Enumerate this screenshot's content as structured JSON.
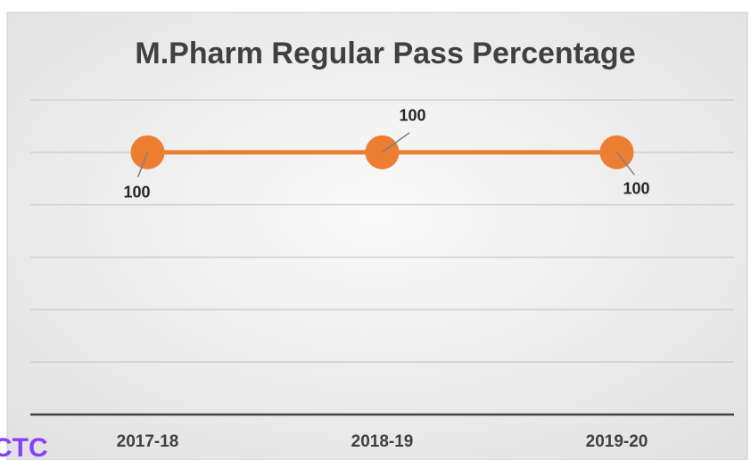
{
  "chart_data": {
    "type": "line",
    "title": "M.Pharm Regular Pass Percentage",
    "categories": [
      "2017-18",
      "2018-19",
      "2019-20"
    ],
    "values": [
      100,
      100,
      100
    ],
    "color": "#ED7D31",
    "ylim": [
      0,
      120
    ],
    "yticks": [
      0,
      20,
      40,
      60,
      80,
      100,
      120
    ],
    "grid": true,
    "logo_text": "CTC"
  }
}
